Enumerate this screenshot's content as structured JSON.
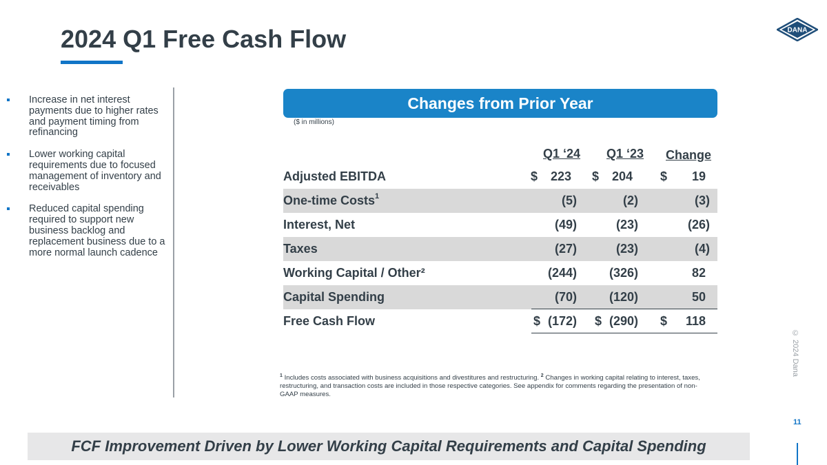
{
  "slide": {
    "title": "2024 Q1 Free Cash Flow",
    "page_number": "11",
    "copyright": "© 2024 Dana",
    "logo_text": "DANA"
  },
  "bullets": [
    "Increase in net interest payments due to higher rates and payment timing from refinancing",
    "Lower working capital requirements due to focused management of inventory and receivables",
    "Reduced capital spending required to support new business backlog and replacement business due to a more normal launch cadence"
  ],
  "table": {
    "banner": "Changes from Prior Year",
    "unit_note": "($ in millions)",
    "headers": [
      "Q1 ‘24",
      "Q1 ‘23",
      "Change"
    ],
    "rows": [
      {
        "label": "Adjusted EBITDA",
        "sup": "",
        "q1_24": "223",
        "q1_23": "204",
        "change": "19",
        "currency": "$"
      },
      {
        "label": "One-time Costs",
        "sup": "1",
        "q1_24": "(5)",
        "q1_23": "(2)",
        "change": "(3)",
        "currency": ""
      },
      {
        "label": "Interest, Net",
        "sup": "",
        "q1_24": "(49)",
        "q1_23": "(23)",
        "change": "(26)",
        "currency": ""
      },
      {
        "label": "Taxes",
        "sup": "",
        "q1_24": "(27)",
        "q1_23": "(23)",
        "change": "(4)",
        "currency": ""
      },
      {
        "label": "Working Capital / Other²",
        "sup": "",
        "q1_24": "(244)",
        "q1_23": "(326)",
        "change": "82",
        "currency": ""
      },
      {
        "label": "Capital Spending",
        "sup": "",
        "q1_24": "(70)",
        "q1_23": "(120)",
        "change": "50",
        "currency": ""
      },
      {
        "label": "Free Cash Flow",
        "sup": "",
        "q1_24": "(172)",
        "q1_23": "(290)",
        "change": "118",
        "currency": "$"
      }
    ]
  },
  "footnote": {
    "sup1": "1",
    "text1": " Includes costs associated with business acquisitions and divestitures and restructuring. ",
    "sup2": "2",
    "text2": " Changes in working capital relating to interest, taxes, restructuring, and transaction costs are included in those respective categories.  See appendix for comments regarding the presentation of non-GAAP measures."
  },
  "bottom_banner": "FCF Improvement Driven by Lower Working Capital Requirements and Capital Spending",
  "colors": {
    "accent_blue": "#1175c7",
    "banner_blue": "#1a84c8",
    "text_dark": "#333f48",
    "row_shade": "#d9d9d9"
  }
}
